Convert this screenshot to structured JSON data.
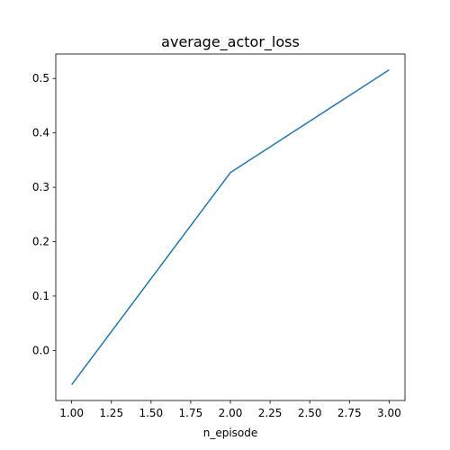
{
  "chart_data": {
    "type": "line",
    "title": "average_actor_loss",
    "xlabel": "n_episode",
    "ylabel": "",
    "x": [
      1.0,
      2.0,
      3.0
    ],
    "series": [
      {
        "values": [
          -0.063,
          0.327,
          0.516
        ],
        "color": "#1f77b4"
      }
    ],
    "xlim": [
      0.9,
      3.1
    ],
    "ylim": [
      -0.0921,
      0.5451
    ],
    "xticks": [
      "1.00",
      "1.25",
      "1.50",
      "1.75",
      "2.00",
      "2.25",
      "2.50",
      "2.75",
      "3.00"
    ],
    "yticks": [
      "0.0",
      "0.1",
      "0.2",
      "0.3",
      "0.4",
      "0.5"
    ],
    "grid": false,
    "legend": "none"
  }
}
